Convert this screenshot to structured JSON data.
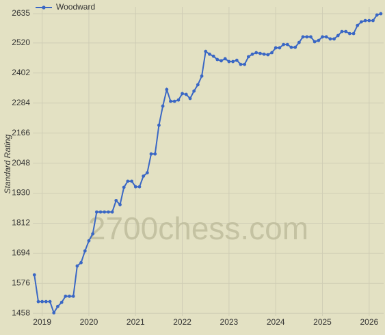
{
  "chart_data": {
    "type": "line",
    "y_label": "Standard Rating",
    "watermark": "2700chess.com",
    "x": [
      2018.833,
      2018.917,
      2019.0,
      2019.083,
      2019.167,
      2019.25,
      2019.333,
      2019.417,
      2019.5,
      2019.583,
      2019.667,
      2019.75,
      2019.833,
      2019.917,
      2020.0,
      2020.083,
      2020.167,
      2020.25,
      2020.333,
      2020.417,
      2020.5,
      2020.583,
      2020.667,
      2020.75,
      2020.833,
      2020.917,
      2021.0,
      2021.083,
      2021.167,
      2021.25,
      2021.333,
      2021.417,
      2021.5,
      2021.583,
      2021.667,
      2021.75,
      2021.833,
      2021.917,
      2022.0,
      2022.083,
      2022.167,
      2022.25,
      2022.333,
      2022.417,
      2022.5,
      2022.583,
      2022.667,
      2022.75,
      2022.833,
      2022.917,
      2023.0,
      2023.083,
      2023.167,
      2023.25,
      2023.333,
      2023.417,
      2023.5,
      2023.583,
      2023.667,
      2023.75,
      2023.833,
      2023.917,
      2024.0,
      2024.083,
      2024.167,
      2024.25,
      2024.333,
      2024.417,
      2024.5,
      2024.583,
      2024.667,
      2024.75,
      2024.833,
      2024.917,
      2025.0,
      2025.083,
      2025.167,
      2025.25,
      2025.333,
      2025.417,
      2025.5,
      2025.583,
      2025.667,
      2025.75,
      2025.833,
      2025.917,
      2026.0,
      2026.083,
      2026.167,
      2026.25
    ],
    "series": [
      {
        "name": "Woodward",
        "color": "#3a67c4",
        "values": [
          1609,
          1504,
          1504,
          1504,
          1504,
          1460,
          1485,
          1501,
          1525,
          1525,
          1525,
          1644,
          1657,
          1703,
          1743,
          1770,
          1856,
          1856,
          1856,
          1856,
          1856,
          1901,
          1885,
          1953,
          1977,
          1977,
          1955,
          1955,
          1997,
          2010,
          2084,
          2084,
          2197,
          2272,
          2337,
          2291,
          2291,
          2296,
          2321,
          2318,
          2302,
          2331,
          2356,
          2390,
          2487,
          2476,
          2468,
          2455,
          2450,
          2458,
          2447,
          2447,
          2452,
          2436,
          2436,
          2466,
          2476,
          2482,
          2479,
          2476,
          2474,
          2482,
          2501,
          2501,
          2514,
          2514,
          2503,
          2503,
          2522,
          2544,
          2544,
          2544,
          2525,
          2530,
          2544,
          2544,
          2536,
          2536,
          2549,
          2565,
          2565,
          2557,
          2557,
          2589,
          2603,
          2608,
          2608,
          2608,
          2630,
          2635
        ]
      }
    ],
    "xlim": [
      2018.8,
      2026.31
    ],
    "xticks": [
      2019,
      2020,
      2021,
      2022,
      2023,
      2024,
      2025,
      2026
    ],
    "ylim": [
      1448,
      2662
    ],
    "yticks": [
      1458,
      1576,
      1694,
      1812,
      1930,
      2048,
      2166,
      2284,
      2402,
      2520,
      2635
    ],
    "grid": true,
    "legend": "top-left"
  }
}
